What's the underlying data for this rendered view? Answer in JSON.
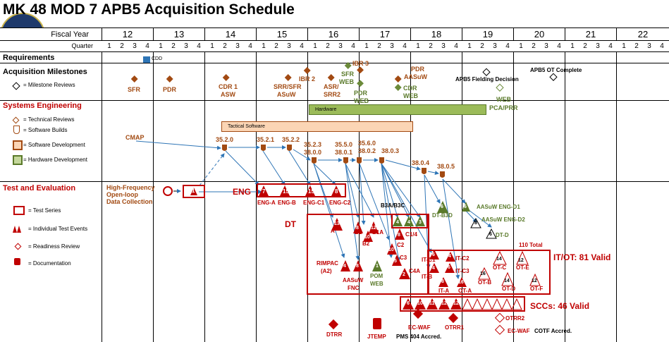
{
  "title": "MK 48 MOD 7 APB5 Acquisition Schedule",
  "header": {
    "fiscal_year_label": "Fiscal Year",
    "quarter_label": "Quarter",
    "years": [
      "12",
      "13",
      "14",
      "15",
      "16",
      "17",
      "18",
      "19",
      "20",
      "21",
      "22"
    ],
    "quarters": [
      "1",
      "2",
      "3",
      "4"
    ]
  },
  "sections": {
    "requirements": "Requirements",
    "acquisition": "Acquisition Milestones",
    "systems": "Systems Engineering",
    "test": "Test and Evaluation"
  },
  "legend": {
    "milestone": "= Milestone Reviews",
    "technical": "= Technical Reviews",
    "software_builds": "= Software Builds",
    "software_dev": "= Software Development",
    "hardware_dev": "= Hardware Development",
    "test_series": "= Test Series",
    "individual": "= Individual Test Events",
    "readiness": "= Readiness Review",
    "documentation": "= Documentation"
  },
  "requirements": {
    "cdd": "CDD",
    "ibr3": "IBR 3"
  },
  "milestones": {
    "sfr": "SFR",
    "pdr": "PDR",
    "cdr1": "CDR 1",
    "asw": "ASW",
    "srr_sfr": "SRR/SFR",
    "asuw": "ASuW",
    "ibr2": "IBR 2",
    "asr": "ASR/",
    "srr2": "SRR2",
    "sfr_web": "SFR",
    "web": "WEB",
    "pdr_web": "PDR",
    "pdr_asuw": "PDR",
    "asuw2": "AASuW",
    "cdr_web": "CDR",
    "web2": "WEB",
    "fielding": "APB5 Fielding Decision",
    "ot_complete": "APB5 OT Complete",
    "web3": "WEB",
    "pca": "PCA/PRR"
  },
  "bars": {
    "hardware": "Hardware",
    "tactical": "Tactical Software"
  },
  "builds": {
    "cmap": "CMAP",
    "b1": "35.2.0",
    "b2": "35.2.1",
    "b3": "35.2.2",
    "b4": "35.2.3",
    "b4b": "38.0.0",
    "b5": "35.5.0",
    "b5b": "38.0.1",
    "b6": "35.6.0",
    "b6b": "38.0.2",
    "b7": "38.0.3",
    "b8": "38.0.4",
    "b9": "38.0.5"
  },
  "test": {
    "hf": "High-Frequency",
    "ol": "Open-loop",
    "dc": "Data Collection",
    "one": "1",
    "eng": "ENG",
    "dt": "DT",
    "eng_a": "ENG-A",
    "eng_b": "ENG-B",
    "eng_c1": "ENG-C1",
    "eng_c2": "ENG-C2",
    "n7": "7",
    "n15a": "15",
    "n15b": "15",
    "n8": "8",
    "b3a": "B3A/B3C",
    "dt_b3d": "DT-B3D",
    "asuw_eng_d1": "AASuW ENG-D1",
    "asuw_eng_d2": "AASuW ENG-D2",
    "dt_d": "DT-D",
    "n110": "110 Total",
    "itot": "IT/OT: 81 Valid",
    "sccs": "SCCs: 46 Valid",
    "rimpac": "RIMPAC",
    "a2": "(A2)",
    "asuw_fnc": "AASuW",
    "fnc": "FNC",
    "pom": "POM",
    "pom_web": "WEB",
    "dtrr": "DTRR",
    "jtemp": "JTEMP",
    "pms": "PMS 404 Accred.",
    "ec_waf": "EC-WAF",
    "otrr1": "OTRR1",
    "otrr2": "OTRR2",
    "ec_waf2": "EC-WAF",
    "cotf": "COTF Accred.",
    "it_a": "IT-A",
    "it_b": "IT-B",
    "it_c1": "IT-C1",
    "it_c2": "IT-C2",
    "it_c3": "IT-C3",
    "ot_a": "OT-A",
    "ot_b": "OT-B",
    "ot_c": "OT-C",
    "ot_d": "OT-D",
    "ot_e": "OT-E",
    "ot_f": "OT-F",
    "a": "A",
    "b1": "B1",
    "b2": "B2",
    "b1a": "B1A",
    "c14": "C1/4",
    "c2": "C2",
    "c3": "C3",
    "c4a": "C4A",
    "n13": "13",
    "n8b": "8",
    "n12": "12",
    "n10": "10",
    "n4a": "4",
    "n4b": "4",
    "n3": "3",
    "n8c": "8",
    "n10b": "10",
    "n5": "5",
    "n2": "2",
    "n4c": "4",
    "n8d": "8",
    "n1": "1",
    "n6a": "6",
    "n4d": "4",
    "n6b": "6",
    "n8e": "8",
    "n16": "16",
    "n14a": "14",
    "n12b": "12",
    "n16b": "16",
    "n14b": "14",
    "n12c": "12",
    "n6c": "6",
    "n6d": "6",
    "n8f": "8",
    "s6": "6",
    "s10": "10",
    "s11": "11",
    "s12": "12",
    "s12b": "12"
  },
  "colors": {
    "brown": "#a24a12",
    "red": "#c00000",
    "green": "#6b8a3a",
    "orange_fill": "#fbd5b5",
    "arrow": "#2e75b6"
  }
}
